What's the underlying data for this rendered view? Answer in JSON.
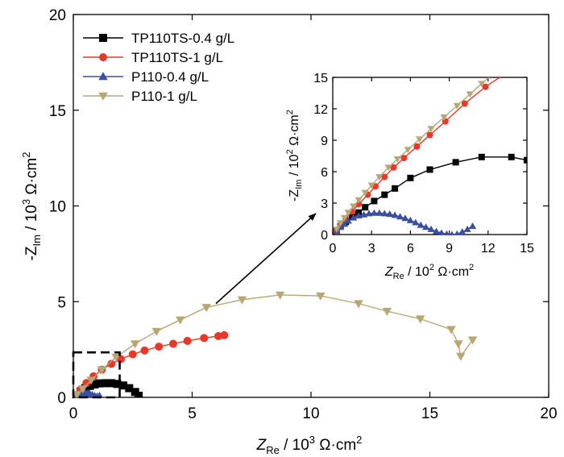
{
  "chart_data": [
    {
      "name": "main",
      "type": "line",
      "xlabel": "Z_Re / 10^3 Ω·cm^2",
      "ylabel": "-Z_Im / 10^3 Ω·cm^2",
      "xlim": [
        0,
        20
      ],
      "ylim": [
        0,
        20
      ],
      "x_ticks": [
        0,
        5,
        10,
        15,
        20
      ],
      "y_ticks": [
        0,
        5,
        10,
        15,
        20
      ],
      "legend_position": "top-left",
      "series": [
        {
          "name": "TP110TS-0.4 g/L",
          "color": "#000000",
          "marker": "square",
          "x": [
            0.1,
            0.3,
            0.5,
            0.7,
            0.9,
            1.1,
            1.35,
            1.6,
            1.85,
            2.1,
            2.35,
            2.6,
            2.75
          ],
          "y": [
            0.08,
            0.3,
            0.48,
            0.6,
            0.68,
            0.73,
            0.74,
            0.74,
            0.7,
            0.62,
            0.48,
            0.28,
            0.08
          ]
        },
        {
          "name": "TP110TS-1 g/L",
          "color": "#e8382a",
          "marker": "circle",
          "x": [
            0.1,
            0.3,
            0.55,
            0.85,
            1.2,
            1.6,
            2.0,
            2.5,
            3.0,
            3.6,
            4.2,
            4.8,
            5.5,
            6.1,
            6.35
          ],
          "y": [
            0.1,
            0.4,
            0.75,
            1.1,
            1.45,
            1.75,
            2.0,
            2.25,
            2.45,
            2.65,
            2.8,
            2.95,
            3.1,
            3.2,
            3.25
          ]
        },
        {
          "name": "P110-0.4 g/L",
          "color": "#3a4fa0",
          "marker": "triangle-up",
          "x": [
            0.1,
            0.2,
            0.3,
            0.4,
            0.5,
            0.6,
            0.7,
            0.8,
            0.9,
            1.0,
            1.1
          ],
          "y": [
            0.05,
            0.12,
            0.18,
            0.21,
            0.21,
            0.19,
            0.15,
            0.1,
            0.05,
            0.02,
            0.06
          ]
        },
        {
          "name": "P110-1 g/L",
          "color": "#b8a774",
          "marker": "triangle-down",
          "x": [
            0.15,
            0.4,
            0.75,
            1.2,
            1.8,
            2.6,
            3.5,
            4.5,
            5.6,
            7.1,
            8.7,
            10.4,
            12.0,
            13.2,
            14.6,
            15.9,
            16.2,
            16.3,
            16.8
          ],
          "y": [
            0.15,
            0.45,
            0.9,
            1.45,
            2.1,
            2.8,
            3.45,
            4.05,
            4.7,
            5.1,
            5.35,
            5.3,
            4.9,
            4.5,
            4.1,
            3.55,
            2.8,
            2.15,
            3.0
          ]
        }
      ],
      "annotations": [
        "dashed zoom box around origin",
        "arrow pointing to inset"
      ]
    },
    {
      "name": "inset",
      "type": "line",
      "xlabel": "Z_Re / 10^2 Ω·cm^2",
      "ylabel": "-Z_Im / 10^2 Ω·cm^2",
      "xlim": [
        0,
        15
      ],
      "ylim": [
        0,
        15
      ],
      "x_ticks": [
        0,
        3,
        6,
        9,
        12,
        15
      ],
      "y_ticks": [
        0,
        3,
        6,
        9,
        12,
        15
      ],
      "series": [
        {
          "name": "TP110TS-0.4 g/L",
          "color": "#000000",
          "marker": "square",
          "x": [
            0.3,
            0.6,
            1.0,
            1.5,
            2.0,
            2.5,
            3.2,
            4.0,
            4.8,
            6.0,
            7.5,
            9.5,
            11.5,
            13.8,
            15.0
          ],
          "y": [
            0.3,
            0.8,
            1.2,
            1.7,
            2.1,
            2.6,
            3.2,
            3.8,
            4.4,
            5.4,
            6.2,
            6.9,
            7.4,
            7.4,
            7.1
          ]
        },
        {
          "name": "TP110TS-1 g/L",
          "color": "#e8382a",
          "marker": "circle",
          "x": [
            0.3,
            0.6,
            1.0,
            1.5,
            2.0,
            2.7,
            3.3,
            4.0,
            4.7,
            5.5,
            6.5,
            7.5,
            8.7,
            10.2,
            11.8,
            13.5
          ],
          "y": [
            0.3,
            0.9,
            1.5,
            2.2,
            2.9,
            3.8,
            4.6,
            5.5,
            6.4,
            7.3,
            8.4,
            9.5,
            10.8,
            12.5,
            14.1,
            15.5
          ]
        },
        {
          "name": "P110-0.4 g/L",
          "color": "#3a4fa0",
          "marker": "triangle-up",
          "x": [
            0.3,
            0.6,
            0.9,
            1.2,
            1.6,
            2.0,
            2.4,
            2.8,
            3.2,
            3.6,
            4.0,
            4.4,
            4.8,
            5.2,
            5.6,
            6.0,
            6.4,
            6.8,
            7.2,
            7.6,
            8.0,
            8.4,
            8.8,
            9.2,
            9.6,
            10.0,
            10.4,
            10.8
          ],
          "y": [
            0.3,
            0.7,
            1.0,
            1.3,
            1.6,
            1.8,
            1.9,
            2.0,
            2.05,
            2.05,
            2.0,
            1.95,
            1.85,
            1.7,
            1.55,
            1.35,
            1.15,
            0.9,
            0.7,
            0.5,
            0.3,
            0.15,
            0.05,
            0.0,
            0.05,
            0.25,
            0.5,
            0.8
          ]
        },
        {
          "name": "P110-1 g/L",
          "color": "#b8a774",
          "marker": "triangle-down",
          "x": [
            0.3,
            0.6,
            0.9,
            1.2,
            1.6,
            2.0,
            2.5,
            3.0,
            3.6,
            4.3,
            5.0,
            5.8,
            6.7,
            7.6,
            8.6,
            9.6,
            10.6,
            11.5,
            12.4
          ],
          "y": [
            0.5,
            1.1,
            1.6,
            2.1,
            2.7,
            3.3,
            4.0,
            4.7,
            5.5,
            6.4,
            7.2,
            8.1,
            9.1,
            10.1,
            11.2,
            12.3,
            13.4,
            14.4,
            15.4
          ]
        }
      ]
    }
  ],
  "main_labels": {
    "x_title": "Z",
    "x_sub": "Re",
    "x_rest": " / 10",
    "x_exp": "3",
    "x_unit": " Ω·cm",
    "x_unit_exp": "2",
    "y_title": "-Z",
    "y_sub": "Im",
    "y_rest": " / 10",
    "y_exp": "3",
    "y_unit": " Ω·cm",
    "y_unit_exp": "2"
  },
  "inset_labels": {
    "x_title": "Z",
    "x_sub": "Re",
    "x_rest": " / 10",
    "x_exp": "2",
    "x_unit": " Ω·cm",
    "x_unit_exp": "2",
    "y_title": "-Z",
    "y_sub": "Im",
    "y_rest": " / 10",
    "y_exp": "2",
    "y_unit": " Ω·cm",
    "y_unit_exp": "2"
  }
}
